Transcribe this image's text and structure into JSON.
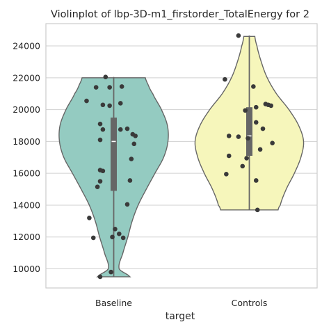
{
  "chart_data": {
    "type": "violin",
    "title": "Violinplot of lbp-3D-m1_firstorder_TotalEnergy for 2",
    "xlabel": "target",
    "ylabel": "",
    "categories": [
      "Baseline",
      "Controls"
    ],
    "ylim": [
      8800,
      25400
    ],
    "yticks": [
      10000,
      12000,
      14000,
      16000,
      18000,
      20000,
      22000,
      24000
    ],
    "ytick_labels": [
      "10000",
      "12000",
      "14000",
      "16000",
      "18000",
      "20000",
      "22000",
      "24000"
    ],
    "grid": "horizontal",
    "colors": {
      "Baseline": "#94cbc1",
      "Controls": "#f6f6bb",
      "outline": "#666666",
      "points": "#3a3a3a",
      "box": "#666666",
      "median": "#ffffff",
      "grid": "#d0d0d0"
    },
    "series": [
      {
        "name": "Baseline",
        "summary": {
          "min": 9500,
          "q1": 14900,
          "median": 18000,
          "q3": 19500,
          "max": 22050
        },
        "violin_profile": [
          [
            9500,
            0.3
          ],
          [
            10000,
            0.1
          ],
          [
            11000,
            0.17
          ],
          [
            12000,
            0.26
          ],
          [
            13000,
            0.34
          ],
          [
            14000,
            0.45
          ],
          [
            15000,
            0.6
          ],
          [
            16000,
            0.76
          ],
          [
            17000,
            0.92
          ],
          [
            18000,
            1.0
          ],
          [
            19000,
            0.99
          ],
          [
            20000,
            0.88
          ],
          [
            21000,
            0.72
          ],
          [
            21600,
            0.63
          ],
          [
            22050,
            0.58
          ]
        ],
        "points": [
          [
            -0.1,
            9500
          ],
          [
            -0.02,
            9800
          ],
          [
            -0.15,
            11950
          ],
          [
            0.07,
            11950
          ],
          [
            -0.01,
            12000
          ],
          [
            0.04,
            12200
          ],
          [
            0.01,
            12500
          ],
          [
            -0.18,
            13200
          ],
          [
            0.1,
            14050
          ],
          [
            -0.12,
            15150
          ],
          [
            -0.1,
            15500
          ],
          [
            0.12,
            15550
          ],
          [
            -0.08,
            16150
          ],
          [
            -0.1,
            16200
          ],
          [
            0.13,
            16900
          ],
          [
            -0.1,
            18100
          ],
          [
            0.15,
            17850
          ],
          [
            0.16,
            18350
          ],
          [
            0.14,
            18450
          ],
          [
            0.05,
            18750
          ],
          [
            0.1,
            18800
          ],
          [
            -0.08,
            18750
          ],
          [
            -0.1,
            19100
          ],
          [
            -0.03,
            20250
          ],
          [
            -0.08,
            20300
          ],
          [
            0.05,
            20400
          ],
          [
            -0.2,
            20550
          ],
          [
            -0.13,
            21400
          ],
          [
            -0.03,
            21400
          ],
          [
            0.06,
            21450
          ],
          [
            -0.06,
            22050
          ]
        ]
      },
      {
        "name": "Controls",
        "summary": {
          "min": 13700,
          "q1": 17100,
          "median": 18350,
          "q3": 20150,
          "max": 24650
        },
        "violin_profile": [
          [
            13700,
            0.53
          ],
          [
            14000,
            0.57
          ],
          [
            15000,
            0.68
          ],
          [
            16000,
            0.83
          ],
          [
            17000,
            0.95
          ],
          [
            18000,
            1.0
          ],
          [
            19000,
            0.91
          ],
          [
            20000,
            0.73
          ],
          [
            21000,
            0.5
          ],
          [
            22000,
            0.33
          ],
          [
            23000,
            0.22
          ],
          [
            24000,
            0.14
          ],
          [
            24650,
            0.1
          ]
        ],
        "points": [
          [
            -0.08,
            24650
          ],
          [
            -0.18,
            21900
          ],
          [
            0.03,
            21450
          ],
          [
            0.12,
            20350
          ],
          [
            0.14,
            20300
          ],
          [
            0.16,
            20250
          ],
          [
            0.05,
            20150
          ],
          [
            -0.03,
            19950
          ],
          [
            0.05,
            19200
          ],
          [
            0.1,
            18800
          ],
          [
            -0.15,
            18350
          ],
          [
            -0.08,
            18300
          ],
          [
            -0.01,
            18200
          ],
          [
            0.17,
            17900
          ],
          [
            0.08,
            17500
          ],
          [
            -0.15,
            17100
          ],
          [
            -0.02,
            16950
          ],
          [
            -0.05,
            16450
          ],
          [
            -0.17,
            15950
          ],
          [
            0.05,
            15550
          ],
          [
            0.06,
            13700
          ]
        ]
      }
    ]
  }
}
